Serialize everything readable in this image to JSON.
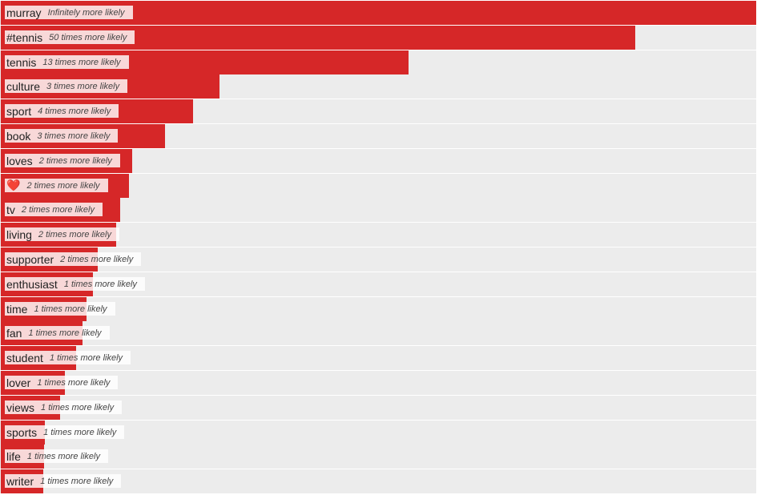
{
  "chart_data": {
    "type": "bar",
    "orientation": "horizontal",
    "bar_color": "#d62728",
    "track_color": "#ececec",
    "xlim": [
      0,
      100
    ],
    "value_unit": "relative bar length (percent of the longest bar)",
    "categories": [
      "murray",
      "#tennis",
      "tennis",
      "culture",
      "sport",
      "book",
      "loves",
      "❤️",
      "tv",
      "living",
      "supporter",
      "enthusiast",
      "time",
      "fan",
      "student",
      "lover",
      "views",
      "sports",
      "life",
      "writer"
    ],
    "labels": [
      "Infinitely more likely",
      "50 times more likely",
      "13 times more likely",
      "3 times more likely",
      "4 times more likely",
      "3 times more likely",
      "2 times more likely",
      "2 times more likely",
      "2 times more likely",
      "2 times more likely",
      "2 times more likely",
      "1 times more likely",
      "1 times more likely",
      "1 times more likely",
      "1 times more likely",
      "1 times more likely",
      "1 times more likely",
      "1 times more likely",
      "1 times more likely",
      "1 times more likely"
    ],
    "values": [
      100,
      84,
      54,
      29,
      25.5,
      21.7,
      17.4,
      17,
      15.8,
      15.3,
      12.8,
      12.2,
      11.3,
      10.8,
      10,
      8.5,
      7.9,
      5.8,
      5.7,
      5.6
    ]
  }
}
